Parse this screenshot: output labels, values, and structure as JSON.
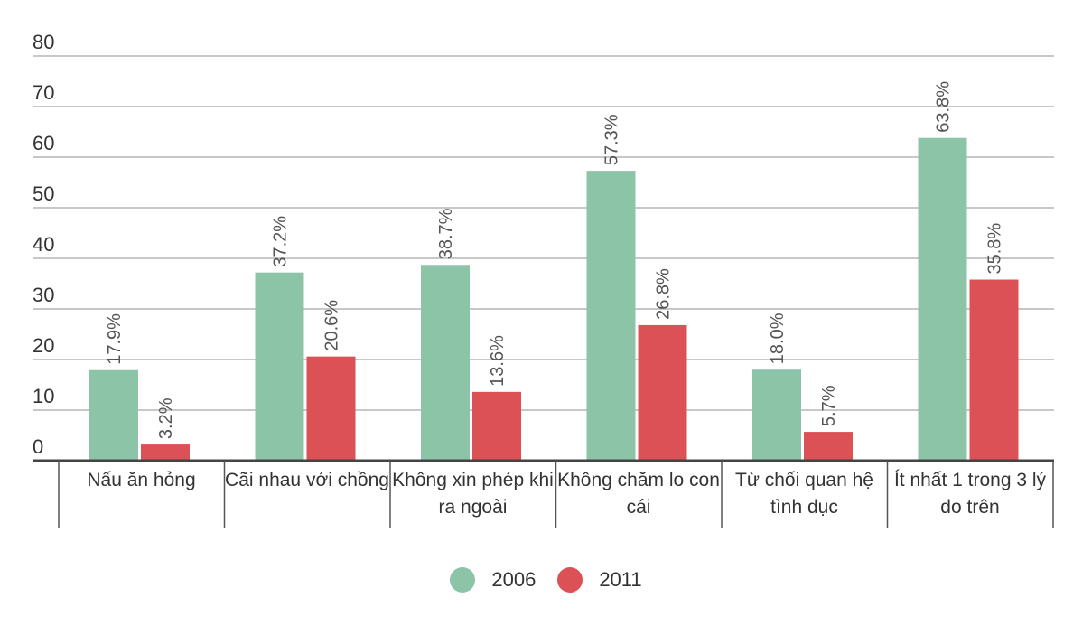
{
  "chart_data": {
    "type": "bar",
    "categories": [
      "Nấu ăn hỏng",
      "Cãi nhau với chồng",
      "Không xin phép khi ra ngoài",
      "Không chăm lo con cái",
      "Từ chối quan hệ tình dục",
      "Ít nhất 1 trong 3 lý do trên"
    ],
    "series": [
      {
        "name": "2006",
        "color": "#8cc4a8",
        "values": [
          17.9,
          37.2,
          38.7,
          57.3,
          18.0,
          63.8
        ],
        "labels": [
          "17.9%",
          "37.2%",
          "38.7%",
          "57.3%",
          "18.0%",
          "63.8%"
        ]
      },
      {
        "name": "2011",
        "color": "#dc5155",
        "values": [
          3.2,
          20.6,
          13.6,
          26.8,
          5.7,
          35.8
        ],
        "labels": [
          "3.2%",
          "20.6%",
          "13.6%",
          "26.8%",
          "5.7%",
          "35.8%"
        ]
      }
    ],
    "yticks": [
      "0",
      "10",
      "20",
      "30",
      "40",
      "50",
      "60",
      "70",
      "80"
    ],
    "ylim": [
      0,
      80
    ],
    "grid": true,
    "legend_position": "bottom-center"
  }
}
